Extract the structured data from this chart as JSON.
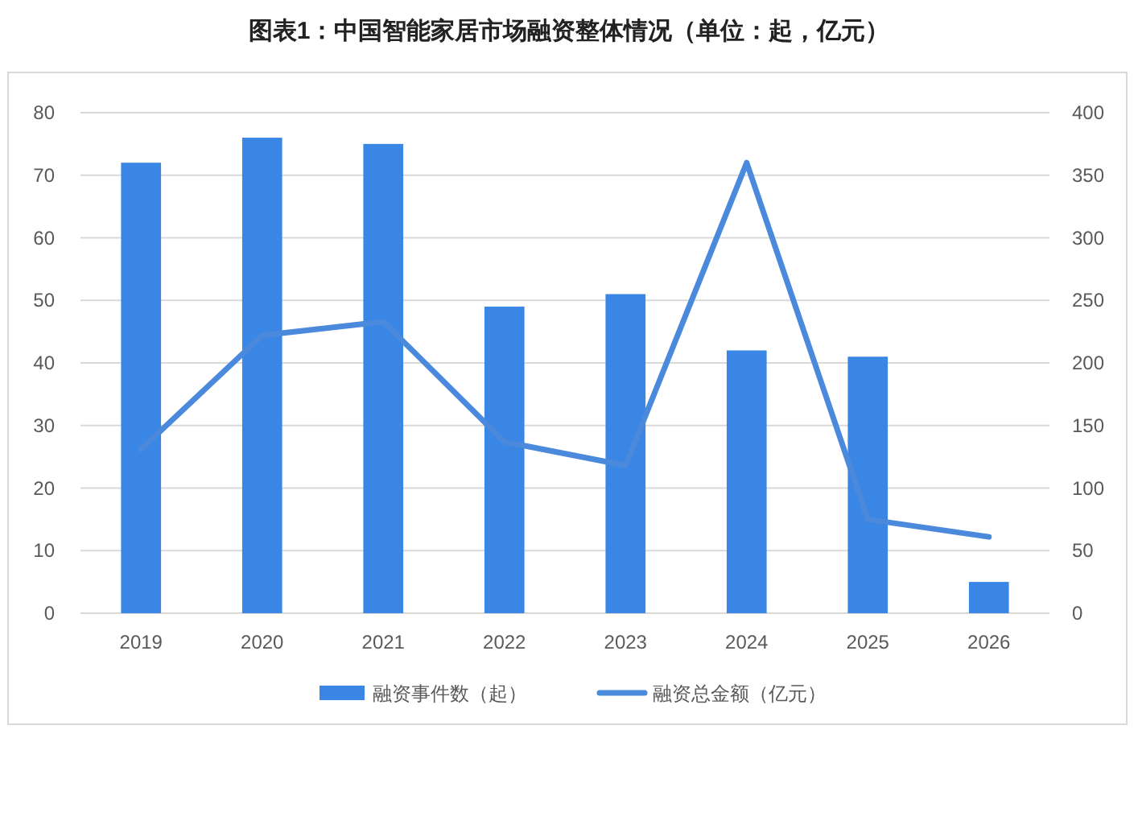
{
  "chart_data": {
    "type": "bar",
    "title": "图表1：中国智能家居市场融资整体情况（单位：起，亿元）",
    "categories": [
      "2019",
      "2020",
      "2021",
      "2022",
      "2023",
      "2024",
      "2025",
      "2026"
    ],
    "series": [
      {
        "name": "融资事件数（起）",
        "color": "#3a86e4",
        "values": [
          72,
          76,
          75,
          49,
          51,
          42,
          41,
          5
        ]
      },
      {
        "name": "融资总金额（亿元）",
        "type": "line",
        "axis": "y2",
        "color": "#4a89dc",
        "values": [
          131,
          222,
          233,
          137,
          118,
          360,
          75,
          61
        ]
      }
    ],
    "ylim": [
      0,
      80
    ],
    "yticks": [
      0,
      10,
      20,
      30,
      40,
      50,
      60,
      70,
      80
    ],
    "y2lim": [
      0,
      400
    ],
    "y2ticks": [
      0,
      50,
      100,
      150,
      200,
      250,
      300,
      350,
      400
    ],
    "grid": "y",
    "legend": "bottom",
    "marker": "none",
    "line_style": "solid"
  }
}
